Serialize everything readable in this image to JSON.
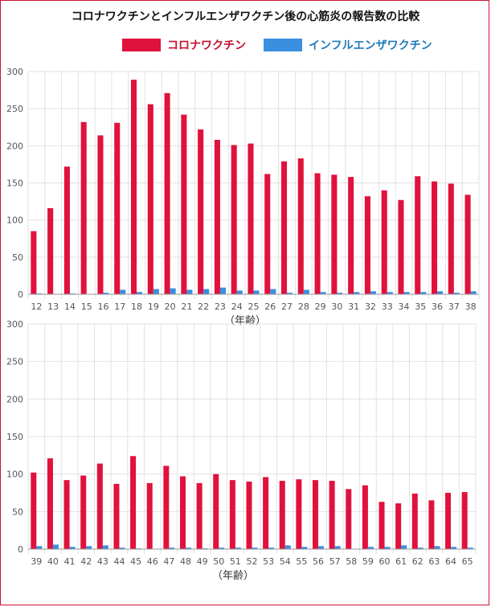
{
  "title": "コロナワクチンとインフルエンザワクチン後の心筋炎の報告数の比較",
  "colors": {
    "covid": "#e0123d",
    "flu": "#3b8fe0",
    "grid": "#e2e2e2",
    "axis": "#999999",
    "covid_text": "#c4102f",
    "flu_text": "#1f7ab8"
  },
  "legend": [
    {
      "name": "コロナワクチン",
      "color": "#e0123d"
    },
    {
      "name": "インフルエンザワクチン",
      "color": "#3b8fe0"
    }
  ],
  "chart_data": [
    {
      "type": "bar",
      "xlabel": "（年齢）",
      "ylim": [
        0,
        300
      ],
      "yticks": [
        0,
        50,
        100,
        150,
        200,
        250,
        300
      ],
      "categories": [
        "12",
        "13",
        "14",
        "15",
        "16",
        "17",
        "18",
        "19",
        "20",
        "21",
        "22",
        "23",
        "24",
        "25",
        "26",
        "27",
        "28",
        "29",
        "30",
        "31",
        "32",
        "33",
        "34",
        "35",
        "36",
        "37",
        "38"
      ],
      "series": [
        {
          "name": "コロナワクチン",
          "values": [
            85,
            116,
            172,
            232,
            214,
            231,
            289,
            256,
            271,
            242,
            222,
            208,
            201,
            203,
            162,
            179,
            183,
            163,
            161,
            158,
            132,
            140,
            127,
            159,
            152,
            149,
            134
          ]
        },
        {
          "name": "インフルエンザワクチン",
          "values": [
            1,
            0,
            1,
            0,
            2,
            6,
            3,
            7,
            8,
            6,
            7,
            9,
            5,
            5,
            7,
            2,
            6,
            3,
            2,
            3,
            4,
            3,
            3,
            3,
            4,
            2,
            4
          ]
        }
      ]
    },
    {
      "type": "bar",
      "xlabel": "（年齢）",
      "ylim": [
        0,
        300
      ],
      "yticks": [
        0,
        50,
        100,
        150,
        200,
        250,
        300
      ],
      "categories": [
        "39",
        "40",
        "41",
        "42",
        "43",
        "44",
        "45",
        "46",
        "47",
        "48",
        "49",
        "50",
        "51",
        "52",
        "53",
        "54",
        "55",
        "56",
        "57",
        "58",
        "59",
        "60",
        "61",
        "62",
        "63",
        "64",
        "65"
      ],
      "series": [
        {
          "name": "コロナワクチン",
          "values": [
            102,
            121,
            92,
            98,
            114,
            87,
            124,
            88,
            111,
            97,
            88,
            100,
            92,
            90,
            96,
            91,
            93,
            92,
            91,
            80,
            85,
            63,
            61,
            74,
            65,
            75,
            76
          ]
        },
        {
          "name": "インフルエンザワクチン",
          "values": [
            4,
            6,
            3,
            4,
            5,
            2,
            1,
            0,
            2,
            2,
            1,
            2,
            2,
            2,
            2,
            5,
            3,
            4,
            4,
            0,
            3,
            3,
            5,
            2,
            4,
            3,
            2
          ]
        }
      ]
    }
  ]
}
